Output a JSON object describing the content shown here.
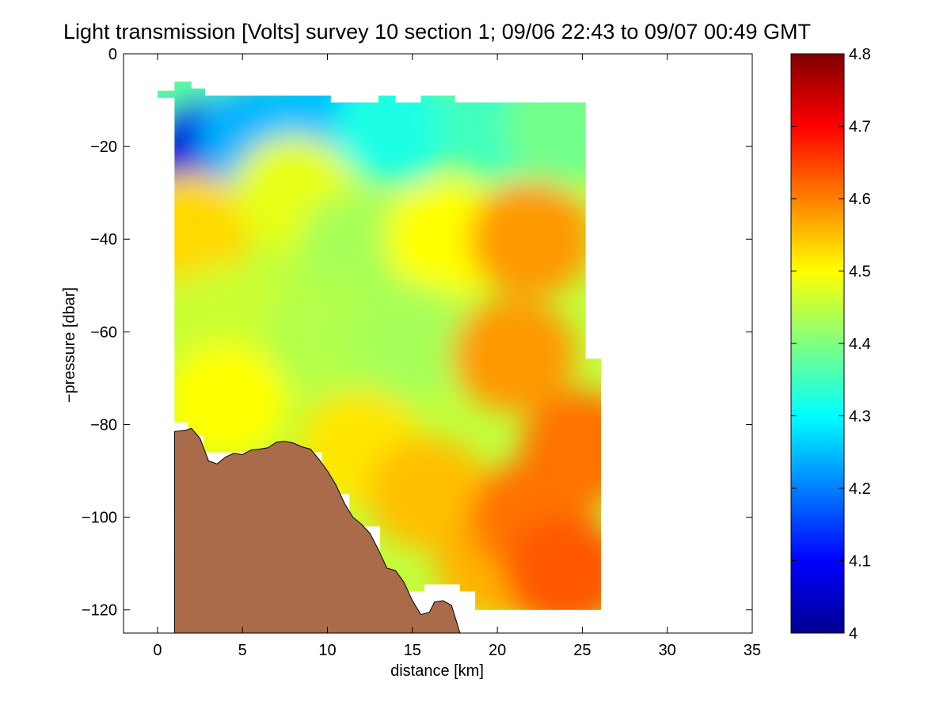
{
  "chart_data": {
    "type": "heatmap",
    "title": "Light transmission [Volts] survey 10 section 1; 09/06 22:43 to 09/07 00:49 GMT",
    "xlabel": "distance [km]",
    "ylabel": "−pressure [dbar]",
    "xlim": [
      -2,
      35
    ],
    "ylim": [
      -125,
      0
    ],
    "xticks": [
      0,
      5,
      10,
      15,
      20,
      25,
      30,
      35
    ],
    "yticks": [
      0,
      -20,
      -40,
      -60,
      -80,
      -100,
      -120
    ],
    "ytick_labels": [
      "0",
      "−20",
      "−40",
      "−60",
      "−80",
      "−100",
      "−120"
    ],
    "colorbar": {
      "colormap": "jet",
      "range": [
        4,
        4.8
      ],
      "ticks": [
        4,
        4.1,
        4.2,
        4.3,
        4.4,
        4.5,
        4.6,
        4.7,
        4.8
      ],
      "tick_labels": [
        "4",
        "4.1",
        "4.2",
        "4.3",
        "4.4",
        "4.5",
        "4.6",
        "4.7",
        "4.8"
      ]
    },
    "grid": false,
    "bathymetry_color": "#A96B49",
    "bathymetry": [
      [
        1,
        -81.5
      ],
      [
        1.7,
        -81.2
      ],
      [
        2,
        -80.8
      ],
      [
        2.5,
        -83
      ],
      [
        3,
        -87.8
      ],
      [
        3.5,
        -88.5
      ],
      [
        4,
        -87
      ],
      [
        4.5,
        -86.2
      ],
      [
        5,
        -86.5
      ],
      [
        5.5,
        -85.5
      ],
      [
        6,
        -85.3
      ],
      [
        6.5,
        -85
      ],
      [
        7,
        -83.8
      ],
      [
        7.5,
        -83.6
      ],
      [
        8,
        -84
      ],
      [
        8.5,
        -84.8
      ],
      [
        9,
        -85.3
      ],
      [
        9.5,
        -87.5
      ],
      [
        10,
        -90
      ],
      [
        10.5,
        -93
      ],
      [
        11,
        -97
      ],
      [
        11.5,
        -100
      ],
      [
        12,
        -101.5
      ],
      [
        12.5,
        -103.5
      ],
      [
        13,
        -107
      ],
      [
        13.5,
        -111
      ],
      [
        14,
        -111.5
      ],
      [
        14.5,
        -114
      ],
      [
        15,
        -118
      ],
      [
        15.5,
        -121
      ],
      [
        16,
        -120.5
      ],
      [
        16.3,
        -118.3
      ],
      [
        16.8,
        -118
      ],
      [
        17.3,
        -119
      ],
      [
        17.8,
        -125
      ]
    ],
    "data_outline": [
      [
        1,
        -79.5
      ],
      [
        1,
        -9.5
      ],
      [
        0,
        -9.5
      ],
      [
        0,
        -8
      ],
      [
        1,
        -8
      ],
      [
        1,
        -6
      ],
      [
        2,
        -6
      ],
      [
        2,
        -7.5
      ],
      [
        2.8,
        -7.5
      ],
      [
        2.8,
        -9
      ],
      [
        10.2,
        -9
      ],
      [
        10.2,
        -10.5
      ],
      [
        13,
        -10.5
      ],
      [
        13,
        -9
      ],
      [
        14,
        -9
      ],
      [
        14,
        -10.5
      ],
      [
        15.5,
        -10.5
      ],
      [
        15.5,
        -9
      ],
      [
        17.5,
        -9
      ],
      [
        17.5,
        -10.5
      ],
      [
        25.2,
        -10.5
      ],
      [
        25.2,
        -65.8
      ],
      [
        26.1,
        -65.8
      ],
      [
        26.1,
        -120
      ],
      [
        18.7,
        -120
      ],
      [
        18.7,
        -116
      ],
      [
        17.8,
        -116
      ],
      [
        17.8,
        -114.5
      ],
      [
        15.7,
        -114.5
      ],
      [
        15.7,
        -116
      ],
      [
        14,
        -116
      ],
      [
        14,
        -112
      ],
      [
        13.1,
        -112
      ],
      [
        13.1,
        -102
      ],
      [
        11.3,
        -102
      ],
      [
        11.3,
        -95
      ],
      [
        9.7,
        -95
      ],
      [
        9.7,
        -86
      ],
      [
        2.7,
        -86
      ],
      [
        2.7,
        -82.5
      ],
      [
        1.8,
        -82.5
      ],
      [
        1.8,
        -79.5
      ]
    ],
    "field_values": [
      {
        "x": 1.5,
        "y": -13,
        "value": 4.37
      },
      {
        "x": 3,
        "y": -22,
        "value": 4.07
      },
      {
        "x": 6,
        "y": -18,
        "value": 4.24
      },
      {
        "x": 9.5,
        "y": -15,
        "value": 4.25
      },
      {
        "x": 14,
        "y": -16,
        "value": 4.32
      },
      {
        "x": 20,
        "y": -15,
        "value": 4.35
      },
      {
        "x": 24,
        "y": -16,
        "value": 4.39
      },
      {
        "x": 2,
        "y": -38,
        "value": 4.53
      },
      {
        "x": 8,
        "y": -30,
        "value": 4.48
      },
      {
        "x": 12,
        "y": -42,
        "value": 4.43
      },
      {
        "x": 17,
        "y": -40,
        "value": 4.5
      },
      {
        "x": 22,
        "y": -40,
        "value": 4.58
      },
      {
        "x": 4,
        "y": -58,
        "value": 4.46
      },
      {
        "x": 10,
        "y": -60,
        "value": 4.44
      },
      {
        "x": 15,
        "y": -62,
        "value": 4.43
      },
      {
        "x": 21,
        "y": -65,
        "value": 4.58
      },
      {
        "x": 25,
        "y": -85,
        "value": 4.61
      },
      {
        "x": 4,
        "y": -75,
        "value": 4.5
      },
      {
        "x": 12,
        "y": -85,
        "value": 4.52
      },
      {
        "x": 16,
        "y": -95,
        "value": 4.55
      },
      {
        "x": 20,
        "y": -110,
        "value": 4.56
      },
      {
        "x": 22,
        "y": -100,
        "value": 4.61
      },
      {
        "x": 24,
        "y": -112,
        "value": 4.63
      }
    ]
  }
}
